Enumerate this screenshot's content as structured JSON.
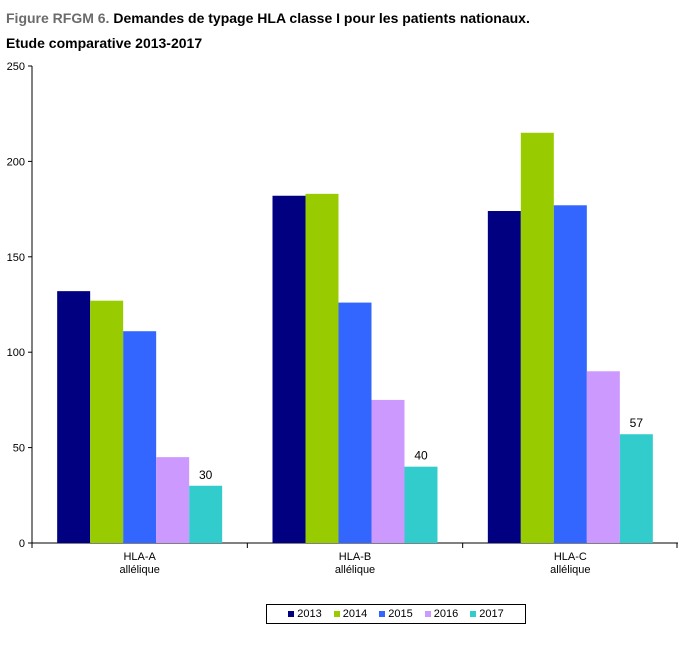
{
  "title": {
    "figure_label": "Figure RFGM 6.",
    "main": "Demandes de typage HLA classe I pour les patients nationaux.",
    "subtitle": "Etude comparative 2013-2017"
  },
  "colors": {
    "2013": "#000080",
    "2014": "#99cc00",
    "2015": "#3366ff",
    "2016": "#cc99ff",
    "2017": "#33cccc"
  },
  "chart_data": {
    "type": "bar",
    "categories": [
      [
        "HLA-A",
        "allélique"
      ],
      [
        "HLA-B",
        "allélique"
      ],
      [
        "HLA-C",
        "allélique"
      ]
    ],
    "series": [
      {
        "name": "2013",
        "values": [
          132,
          182,
          174
        ]
      },
      {
        "name": "2014",
        "values": [
          127,
          183,
          215
        ]
      },
      {
        "name": "2015",
        "values": [
          111,
          126,
          177
        ]
      },
      {
        "name": "2016",
        "values": [
          45,
          75,
          90
        ]
      },
      {
        "name": "2017",
        "values": [
          30,
          40,
          57
        ]
      }
    ],
    "data_labels": {
      "series": "2017",
      "values": [
        "30",
        "40",
        "57"
      ]
    },
    "yticks": [
      "0",
      "50",
      "100",
      "150",
      "200",
      "250"
    ],
    "ylim": [
      0,
      250
    ],
    "legend_position": "bottom"
  }
}
